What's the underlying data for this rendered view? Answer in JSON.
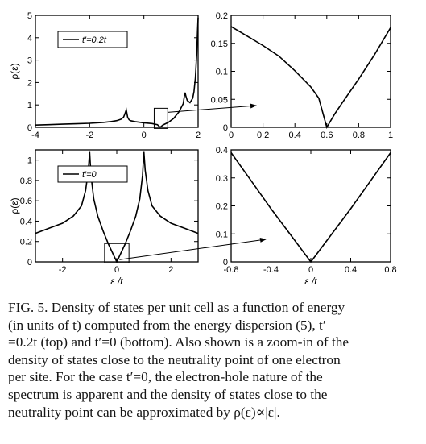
{
  "colors": {
    "line": "#000000",
    "frame": "#000000",
    "link": "#1f3fbf"
  },
  "figure": {
    "panels": [
      {
        "id": "top-left",
        "ylabel": "ρ(ε)",
        "xlabel": "",
        "legend": "t′=0.2t",
        "xticks": [
          "-4",
          "-2",
          "0",
          "2"
        ],
        "yticks": [
          "0",
          "1",
          "2",
          "3",
          "4",
          "5"
        ],
        "zoom_box": true
      },
      {
        "id": "top-right",
        "ylabel": "",
        "xlabel": "",
        "xticks": [
          "0",
          "0.2",
          "0.4",
          "0.6",
          "0.8",
          "1"
        ],
        "yticks": [
          "0",
          "0.05",
          "0.1",
          "0.15",
          "0.2"
        ]
      },
      {
        "id": "bottom-left",
        "ylabel": "ρ(ε)",
        "xlabel": "ε /t",
        "legend": "t′=0",
        "xticks": [
          "-2",
          "0",
          "2"
        ],
        "yticks": [
          "0",
          "0.2",
          "0.4",
          "0.6",
          "0.8",
          "1"
        ],
        "zoom_box": true
      },
      {
        "id": "bottom-right",
        "ylabel": "",
        "xlabel": "ε /t",
        "xticks": [
          "-0.8",
          "-0.4",
          "0",
          "0.4",
          "0.8"
        ],
        "yticks": [
          "0",
          "0.1",
          "0.2",
          "0.3",
          "0.4"
        ]
      }
    ]
  },
  "caption": {
    "lines": [
      "FIG. 5. Density of states per unit cell as a function of energy",
      "(in units of t) computed from the energy dispersion (5), t′",
      "=0.2t (top) and t′=0 (bottom). Also shown is a zoom-in of the",
      "density of states close to the neutrality point of one electron",
      "per site. For the case t′=0, the electron-hole nature of the",
      "spectrum is apparent and the density of states close to the",
      "neutrality point can be approximated by ρ(ε)∝|ε|."
    ]
  },
  "chart_data": [
    {
      "type": "line",
      "title": "",
      "xlabel": "",
      "ylabel": "ρ(ε)",
      "xlim": [
        -4,
        2
      ],
      "ylim": [
        0,
        5
      ],
      "series": [
        {
          "name": "t′=0.2t",
          "x": [
            -4,
            -3.5,
            -3,
            -2.5,
            -2,
            -1.5,
            -1.2,
            -1.0,
            -0.85,
            -0.75,
            -0.7,
            -0.65,
            -0.6,
            -0.55,
            -0.5,
            -0.3,
            0,
            0.3,
            0.5,
            0.6,
            0.7,
            0.9,
            1.1,
            1.3,
            1.45,
            1.5,
            1.52,
            1.55,
            1.6,
            1.7,
            1.8,
            1.85,
            1.9,
            1.95,
            1.98,
            2.0
          ],
          "y": [
            0.1,
            0.12,
            0.14,
            0.16,
            0.18,
            0.22,
            0.26,
            0.3,
            0.36,
            0.45,
            0.6,
            0.78,
            0.45,
            0.34,
            0.3,
            0.25,
            0.2,
            0.17,
            0.12,
            0.0,
            0.1,
            0.22,
            0.4,
            0.7,
            1.05,
            1.45,
            1.55,
            1.4,
            1.2,
            1.1,
            1.3,
            1.6,
            2.2,
            3.3,
            4.3,
            4.9
          ]
        }
      ]
    },
    {
      "type": "line",
      "title": "",
      "xlabel": "",
      "ylabel": "",
      "xlim": [
        0,
        1
      ],
      "ylim": [
        0,
        0.2
      ],
      "series": [
        {
          "name": "",
          "x": [
            0,
            0.1,
            0.2,
            0.3,
            0.4,
            0.5,
            0.55,
            0.6,
            0.65,
            0.7,
            0.8,
            0.9,
            1.0
          ],
          "y": [
            0.18,
            0.163,
            0.146,
            0.127,
            0.101,
            0.072,
            0.052,
            0.0,
            0.024,
            0.045,
            0.086,
            0.13,
            0.178
          ]
        }
      ]
    },
    {
      "type": "line",
      "title": "",
      "xlabel": "ε /t",
      "ylabel": "ρ(ε)",
      "xlim": [
        -3,
        3
      ],
      "ylim": [
        0,
        1.1
      ],
      "series": [
        {
          "name": "t′=0",
          "x": [
            -3,
            -2.5,
            -2,
            -1.6,
            -1.3,
            -1.15,
            -1.05,
            -1.0,
            -0.95,
            -0.85,
            -0.7,
            -0.5,
            -0.3,
            0,
            0.3,
            0.5,
            0.7,
            0.85,
            0.95,
            1.0,
            1.05,
            1.15,
            1.3,
            1.6,
            2,
            2.5,
            3
          ],
          "y": [
            0.28,
            0.33,
            0.38,
            0.45,
            0.55,
            0.7,
            0.9,
            1.08,
            0.85,
            0.62,
            0.45,
            0.3,
            0.17,
            0.0,
            0.17,
            0.3,
            0.45,
            0.62,
            0.85,
            1.08,
            0.9,
            0.7,
            0.55,
            0.45,
            0.38,
            0.33,
            0.28
          ]
        }
      ]
    },
    {
      "type": "line",
      "title": "",
      "xlabel": "ε /t",
      "ylabel": "",
      "xlim": [
        -0.8,
        0.8
      ],
      "ylim": [
        0,
        0.4
      ],
      "series": [
        {
          "name": "",
          "x": [
            -0.8,
            -0.6,
            -0.4,
            -0.2,
            0,
            0.2,
            0.4,
            0.6,
            0.8
          ],
          "y": [
            0.39,
            0.29,
            0.19,
            0.095,
            0.0,
            0.095,
            0.19,
            0.29,
            0.39
          ]
        }
      ]
    }
  ]
}
